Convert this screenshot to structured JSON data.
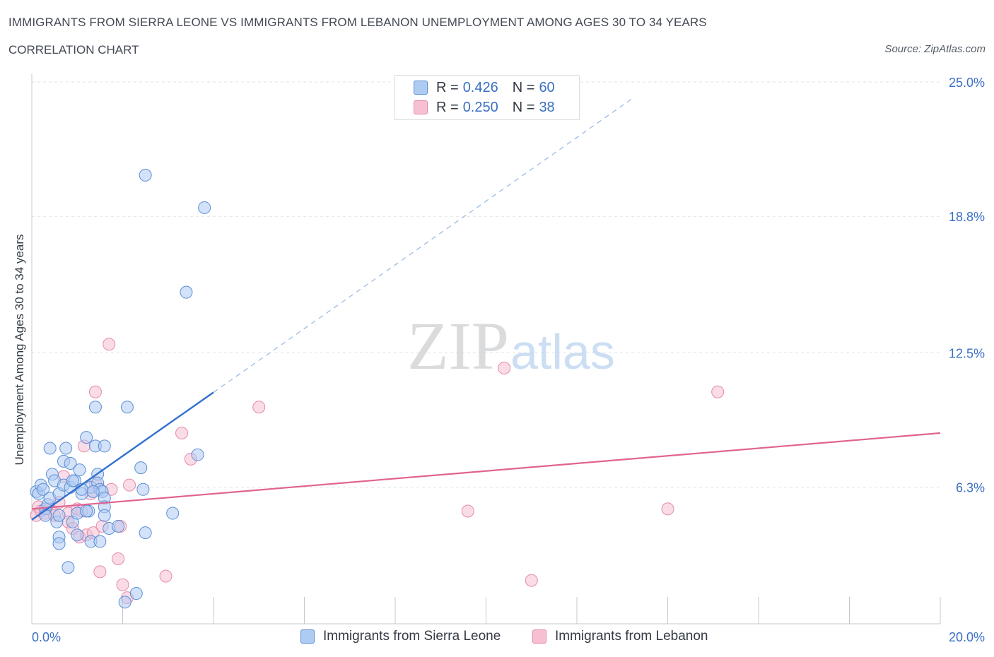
{
  "header": {
    "title": "IMMIGRANTS FROM SIERRA LEONE VS IMMIGRANTS FROM LEBANON UNEMPLOYMENT AMONG AGES 30 TO 34 YEARS",
    "subtitle": "CORRELATION CHART",
    "source": "Source: ZipAtlas.com"
  },
  "watermark": {
    "zip": "ZIP",
    "atlas": "atlas"
  },
  "legend": {
    "series1": {
      "r_label": "R =",
      "r_value": "0.426",
      "n_label": "N =",
      "n_value": "60"
    },
    "series2": {
      "r_label": "R =",
      "r_value": "0.250",
      "n_label": "N =",
      "n_value": "38"
    }
  },
  "colors": {
    "series1_fill": "#aecbf2",
    "series1_stroke": "#5b8fd6",
    "series1_line": "#2f6fd0",
    "series2_fill": "#f6bfd2",
    "series2_stroke": "#e58aaa",
    "series2_line": "#e0638e",
    "tick_label": "#3a6fc4"
  },
  "chart_data": {
    "type": "scatter",
    "title": "IMMIGRANTS FROM SIERRA LEONE VS IMMIGRANTS FROM LEBANON UNEMPLOYMENT AMONG AGES 30 TO 34 YEARS",
    "xlabel": "",
    "ylabel": "Unemployment Among Ages 30 to 34 years",
    "xlim": [
      0,
      20
    ],
    "ylim": [
      0,
      25
    ],
    "x_tick_labels": [
      "0.0%",
      "20.0%"
    ],
    "y_ticks": [
      6.3,
      12.5,
      18.8,
      25.0
    ],
    "y_tick_labels": [
      "6.3%",
      "12.5%",
      "18.8%",
      "25.0%"
    ],
    "series": [
      {
        "name": "Immigrants from Sierra Leone",
        "r": 0.426,
        "n": 60,
        "trend": {
          "x_solid": [
            0.0,
            4.0
          ],
          "x_dashed_end": 13.2,
          "y_at_0": 4.8,
          "slope": 1.47
        },
        "points": [
          [
            0.1,
            6.1
          ],
          [
            0.15,
            6.0
          ],
          [
            0.2,
            6.4
          ],
          [
            0.25,
            6.2
          ],
          [
            0.3,
            5.3
          ],
          [
            0.35,
            5.5
          ],
          [
            0.4,
            5.8
          ],
          [
            0.45,
            6.9
          ],
          [
            0.4,
            8.1
          ],
          [
            0.5,
            6.6
          ],
          [
            0.55,
            4.7
          ],
          [
            0.6,
            5.0
          ],
          [
            0.6,
            6.0
          ],
          [
            0.7,
            6.4
          ],
          [
            0.6,
            4.0
          ],
          [
            0.6,
            3.7
          ],
          [
            0.7,
            7.5
          ],
          [
            0.75,
            8.1
          ],
          [
            0.8,
            2.6
          ],
          [
            0.85,
            7.4
          ],
          [
            0.85,
            6.3
          ],
          [
            0.9,
            4.7
          ],
          [
            0.95,
            6.6
          ],
          [
            1.0,
            5.1
          ],
          [
            1.0,
            4.1
          ],
          [
            1.05,
            7.1
          ],
          [
            1.1,
            6.0
          ],
          [
            1.2,
            8.6
          ],
          [
            1.3,
            6.3
          ],
          [
            1.3,
            3.8
          ],
          [
            1.4,
            8.2
          ],
          [
            1.45,
            6.9
          ],
          [
            1.45,
            6.5
          ],
          [
            1.5,
            6.2
          ],
          [
            1.55,
            6.1
          ],
          [
            1.6,
            5.8
          ],
          [
            1.35,
            6.1
          ],
          [
            1.25,
            5.2
          ],
          [
            1.4,
            10.0
          ],
          [
            1.5,
            3.8
          ],
          [
            1.6,
            5.4
          ],
          [
            1.6,
            5.0
          ],
          [
            1.6,
            8.2
          ],
          [
            1.7,
            4.4
          ],
          [
            1.9,
            4.5
          ],
          [
            2.1,
            10.0
          ],
          [
            2.05,
            1.0
          ],
          [
            2.3,
            1.4
          ],
          [
            2.4,
            7.2
          ],
          [
            2.45,
            6.2
          ],
          [
            2.5,
            4.2
          ],
          [
            2.5,
            20.7
          ],
          [
            3.1,
            5.1
          ],
          [
            3.4,
            15.3
          ],
          [
            3.8,
            19.2
          ],
          [
            3.65,
            7.8
          ],
          [
            1.2,
            5.2
          ],
          [
            0.9,
            6.6
          ],
          [
            1.1,
            6.2
          ],
          [
            0.3,
            5.0
          ]
        ]
      },
      {
        "name": "Immigrants from Lebanon",
        "r": 0.25,
        "n": 38,
        "trend": {
          "x": [
            0.0,
            20.0
          ],
          "y_at_0": 5.3,
          "slope": 0.175
        },
        "points": [
          [
            0.1,
            5.0
          ],
          [
            0.15,
            5.4
          ],
          [
            0.2,
            5.2
          ],
          [
            0.3,
            5.1
          ],
          [
            0.4,
            5.3
          ],
          [
            0.5,
            5.0
          ],
          [
            0.6,
            5.6
          ],
          [
            0.7,
            6.8
          ],
          [
            0.8,
            5.1
          ],
          [
            0.8,
            4.7
          ],
          [
            0.9,
            4.4
          ],
          [
            1.0,
            5.3
          ],
          [
            1.05,
            4.0
          ],
          [
            1.1,
            5.2
          ],
          [
            1.15,
            8.2
          ],
          [
            1.2,
            4.1
          ],
          [
            1.3,
            6.0
          ],
          [
            1.35,
            4.2
          ],
          [
            1.4,
            6.5
          ],
          [
            1.4,
            10.7
          ],
          [
            1.5,
            2.4
          ],
          [
            1.55,
            4.5
          ],
          [
            1.7,
            12.9
          ],
          [
            1.75,
            6.2
          ],
          [
            1.9,
            3.0
          ],
          [
            1.95,
            4.5
          ],
          [
            2.0,
            1.8
          ],
          [
            2.1,
            1.2
          ],
          [
            2.15,
            6.4
          ],
          [
            2.95,
            2.2
          ],
          [
            3.3,
            8.8
          ],
          [
            3.5,
            7.6
          ],
          [
            5.0,
            10.0
          ],
          [
            9.6,
            5.2
          ],
          [
            10.4,
            11.8
          ],
          [
            11.0,
            2.0
          ],
          [
            14.0,
            5.3
          ],
          [
            15.1,
            10.7
          ]
        ]
      }
    ]
  },
  "bottom_legend": {
    "series1_label": "Immigrants from Sierra Leone",
    "series2_label": "Immigrants from Lebanon"
  }
}
